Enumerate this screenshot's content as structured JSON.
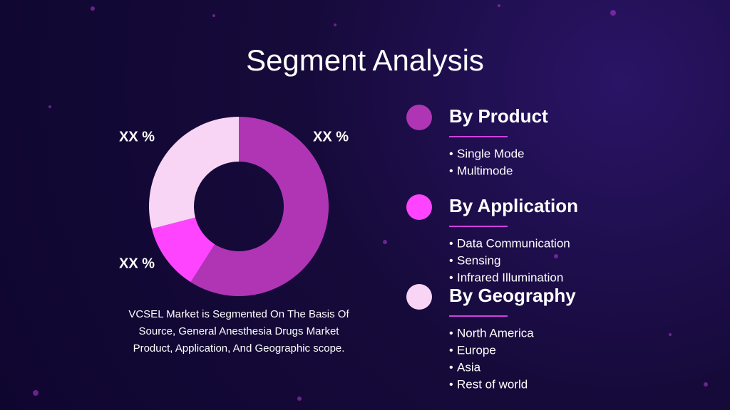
{
  "title": "Segment Analysis",
  "chart_data": {
    "type": "pie",
    "values": [
      59,
      12,
      29
    ],
    "colors": [
      "#b035b5",
      "#ff44ff",
      "#f8d4f5"
    ],
    "annotations": [
      "XX %",
      "XX %",
      "XX %"
    ]
  },
  "description": "VCSEL Market is Segmented On The Basis Of Source, General Anesthesia Drugs Market Product, Application, And Geographic scope.",
  "segments": [
    {
      "name": "By Product",
      "color": "#b035b5",
      "items": [
        "Single Mode",
        "Multimode"
      ]
    },
    {
      "name": "By Application",
      "color": "#ff44ff",
      "items": [
        "Data Communication",
        "Sensing",
        "Infrared Illumination"
      ]
    },
    {
      "name": "By Geography",
      "color": "#f8d4f5",
      "items": [
        "North America",
        "Europe",
        "Asia",
        "Rest of world"
      ]
    }
  ]
}
